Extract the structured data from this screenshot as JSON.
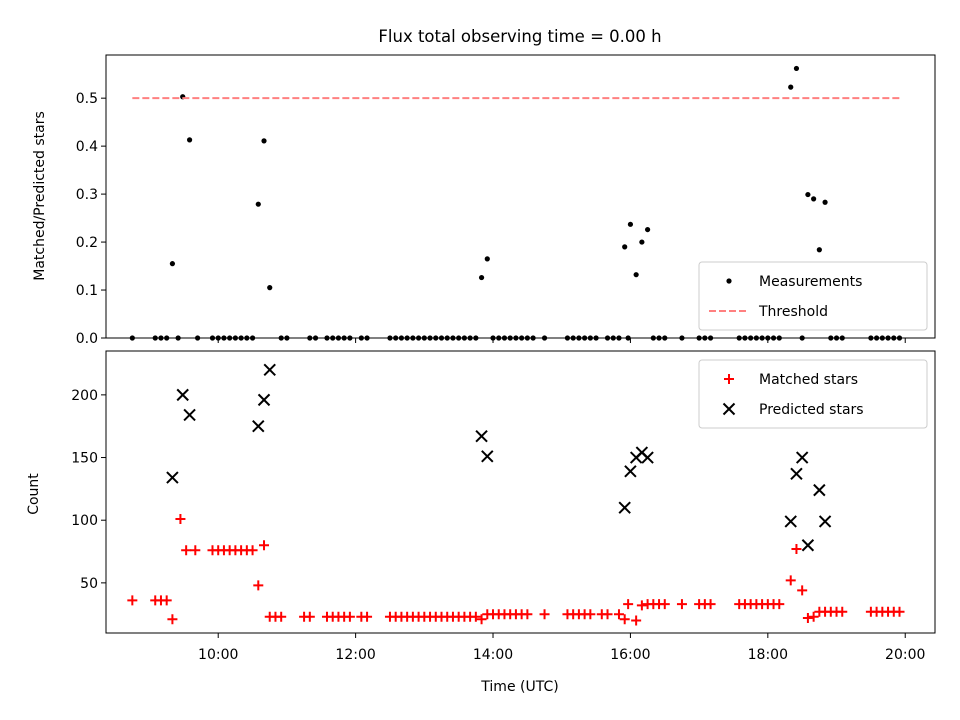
{
  "figure_title": "Flux total observing time = 0.00 h",
  "x_axis": {
    "label": "Time (UTC)",
    "range": [
      "08:22",
      "20:26"
    ],
    "ticks": [
      "10:00",
      "12:00",
      "14:00",
      "16:00",
      "18:00",
      "20:00"
    ]
  },
  "colors": {
    "measurements": "#000000",
    "threshold": "#ff8080",
    "matched": "#ff0000",
    "predicted": "#000000"
  },
  "chart_data": [
    {
      "type": "scatter",
      "panel": "top",
      "ylabel": "Matched/Predicted stars",
      "ylim": [
        0,
        0.59
      ],
      "yticks": [
        "0.0",
        "0.1",
        "0.2",
        "0.3",
        "0.4",
        "0.5"
      ],
      "legend_position": "lower-right",
      "series": [
        {
          "name": "Measurements",
          "marker": "dot",
          "points": [
            [
              "08:45",
              0
            ],
            [
              "09:05",
              0
            ],
            [
              "09:10",
              0
            ],
            [
              "09:15",
              0
            ],
            [
              "09:20",
              0.155
            ],
            [
              "09:25",
              0
            ],
            [
              "09:29",
              0.503
            ],
            [
              "09:35",
              0.413
            ],
            [
              "09:42",
              0
            ],
            [
              "09:55",
              0
            ],
            [
              "10:00",
              0
            ],
            [
              "10:05",
              0
            ],
            [
              "10:10",
              0
            ],
            [
              "10:15",
              0
            ],
            [
              "10:20",
              0
            ],
            [
              "10:25",
              0
            ],
            [
              "10:30",
              0
            ],
            [
              "10:35",
              0.279
            ],
            [
              "10:40",
              0.411
            ],
            [
              "10:45",
              0.105
            ],
            [
              "10:55",
              0
            ],
            [
              "11:00",
              0
            ],
            [
              "11:20",
              0
            ],
            [
              "11:25",
              0
            ],
            [
              "11:35",
              0
            ],
            [
              "11:40",
              0
            ],
            [
              "11:45",
              0
            ],
            [
              "11:50",
              0
            ],
            [
              "11:55",
              0
            ],
            [
              "12:05",
              0
            ],
            [
              "12:10",
              0
            ],
            [
              "12:30",
              0
            ],
            [
              "12:35",
              0
            ],
            [
              "12:40",
              0
            ],
            [
              "12:45",
              0
            ],
            [
              "12:50",
              0
            ],
            [
              "12:55",
              0
            ],
            [
              "13:00",
              0
            ],
            [
              "13:05",
              0
            ],
            [
              "13:10",
              0
            ],
            [
              "13:15",
              0
            ],
            [
              "13:20",
              0
            ],
            [
              "13:25",
              0
            ],
            [
              "13:30",
              0
            ],
            [
              "13:35",
              0
            ],
            [
              "13:40",
              0
            ],
            [
              "13:45",
              0
            ],
            [
              "13:50",
              0.126
            ],
            [
              "13:55",
              0.165
            ],
            [
              "14:00",
              0
            ],
            [
              "14:05",
              0
            ],
            [
              "14:10",
              0
            ],
            [
              "14:15",
              0
            ],
            [
              "14:20",
              0
            ],
            [
              "14:25",
              0
            ],
            [
              "14:30",
              0
            ],
            [
              "14:35",
              0
            ],
            [
              "14:45",
              0
            ],
            [
              "15:05",
              0
            ],
            [
              "15:10",
              0
            ],
            [
              "15:15",
              0
            ],
            [
              "15:20",
              0
            ],
            [
              "15:25",
              0
            ],
            [
              "15:30",
              0
            ],
            [
              "15:40",
              0
            ],
            [
              "15:45",
              0
            ],
            [
              "15:50",
              0
            ],
            [
              "15:55",
              0.19
            ],
            [
              "15:58",
              0
            ],
            [
              "16:00",
              0.237
            ],
            [
              "16:05",
              0.132
            ],
            [
              "16:10",
              0.2
            ],
            [
              "16:15",
              0.226
            ],
            [
              "16:20",
              0
            ],
            [
              "16:25",
              0
            ],
            [
              "16:30",
              0
            ],
            [
              "16:45",
              0
            ],
            [
              "17:00",
              0
            ],
            [
              "17:05",
              0
            ],
            [
              "17:10",
              0
            ],
            [
              "17:35",
              0
            ],
            [
              "17:40",
              0
            ],
            [
              "17:45",
              0
            ],
            [
              "17:50",
              0
            ],
            [
              "17:55",
              0
            ],
            [
              "18:00",
              0
            ],
            [
              "18:05",
              0
            ],
            [
              "18:10",
              0
            ],
            [
              "18:20",
              0.523
            ],
            [
              "18:25",
              0.562
            ],
            [
              "18:30",
              0
            ],
            [
              "18:35",
              0.299
            ],
            [
              "18:40",
              0.29
            ],
            [
              "18:45",
              0.184
            ],
            [
              "18:50",
              0.283
            ],
            [
              "18:55",
              0
            ],
            [
              "19:00",
              0
            ],
            [
              "19:05",
              0
            ],
            [
              "19:30",
              0
            ],
            [
              "19:35",
              0
            ],
            [
              "19:40",
              0
            ],
            [
              "19:45",
              0
            ],
            [
              "19:50",
              0
            ],
            [
              "19:55",
              0
            ]
          ]
        },
        {
          "name": "Threshold",
          "marker": "dashed-line",
          "points": [
            [
              "08:45",
              0.5
            ],
            [
              "19:55",
              0.5
            ]
          ]
        }
      ]
    },
    {
      "type": "scatter",
      "panel": "bottom",
      "ylabel": "Count",
      "ylim": [
        10,
        235
      ],
      "yticks": [
        "50",
        "100",
        "150",
        "200"
      ],
      "legend_position": "upper-right",
      "series": [
        {
          "name": "Matched stars",
          "marker": "plus",
          "points": [
            [
              "08:45",
              36
            ],
            [
              "09:05",
              36
            ],
            [
              "09:10",
              36
            ],
            [
              "09:15",
              36
            ],
            [
              "09:20",
              21
            ],
            [
              "09:27",
              101
            ],
            [
              "09:32",
              76
            ],
            [
              "09:40",
              76
            ],
            [
              "09:55",
              76
            ],
            [
              "10:00",
              76
            ],
            [
              "10:05",
              76
            ],
            [
              "10:10",
              76
            ],
            [
              "10:15",
              76
            ],
            [
              "10:20",
              76
            ],
            [
              "10:25",
              76
            ],
            [
              "10:30",
              76
            ],
            [
              "10:35",
              48
            ],
            [
              "10:40",
              80
            ],
            [
              "10:45",
              23
            ],
            [
              "10:50",
              23
            ],
            [
              "10:55",
              23
            ],
            [
              "11:15",
              23
            ],
            [
              "11:20",
              23
            ],
            [
              "11:35",
              23
            ],
            [
              "11:40",
              23
            ],
            [
              "11:45",
              23
            ],
            [
              "11:50",
              23
            ],
            [
              "11:55",
              23
            ],
            [
              "12:05",
              23
            ],
            [
              "12:10",
              23
            ],
            [
              "12:30",
              23
            ],
            [
              "12:35",
              23
            ],
            [
              "12:40",
              23
            ],
            [
              "12:45",
              23
            ],
            [
              "12:50",
              23
            ],
            [
              "12:55",
              23
            ],
            [
              "13:00",
              23
            ],
            [
              "13:05",
              23
            ],
            [
              "13:10",
              23
            ],
            [
              "13:15",
              23
            ],
            [
              "13:20",
              23
            ],
            [
              "13:25",
              23
            ],
            [
              "13:30",
              23
            ],
            [
              "13:35",
              23
            ],
            [
              "13:40",
              23
            ],
            [
              "13:45",
              23
            ],
            [
              "13:50",
              21
            ],
            [
              "13:55",
              25
            ],
            [
              "14:00",
              25
            ],
            [
              "14:05",
              25
            ],
            [
              "14:10",
              25
            ],
            [
              "14:15",
              25
            ],
            [
              "14:20",
              25
            ],
            [
              "14:25",
              25
            ],
            [
              "14:30",
              25
            ],
            [
              "14:45",
              25
            ],
            [
              "15:05",
              25
            ],
            [
              "15:10",
              25
            ],
            [
              "15:15",
              25
            ],
            [
              "15:20",
              25
            ],
            [
              "15:25",
              25
            ],
            [
              "15:35",
              25
            ],
            [
              "15:40",
              25
            ],
            [
              "15:50",
              25
            ],
            [
              "15:55",
              21
            ],
            [
              "15:58",
              33
            ],
            [
              "16:05",
              20
            ],
            [
              "16:10",
              32
            ],
            [
              "16:15",
              33
            ],
            [
              "16:20",
              33
            ],
            [
              "16:25",
              33
            ],
            [
              "16:30",
              33
            ],
            [
              "16:45",
              33
            ],
            [
              "17:00",
              33
            ],
            [
              "17:05",
              33
            ],
            [
              "17:10",
              33
            ],
            [
              "17:35",
              33
            ],
            [
              "17:40",
              33
            ],
            [
              "17:45",
              33
            ],
            [
              "17:50",
              33
            ],
            [
              "17:55",
              33
            ],
            [
              "18:00",
              33
            ],
            [
              "18:05",
              33
            ],
            [
              "18:10",
              33
            ],
            [
              "18:20",
              52
            ],
            [
              "18:25",
              77
            ],
            [
              "18:30",
              44
            ],
            [
              "18:35",
              22
            ],
            [
              "18:40",
              23
            ],
            [
              "18:45",
              27
            ],
            [
              "18:50",
              27
            ],
            [
              "18:55",
              27
            ],
            [
              "19:00",
              27
            ],
            [
              "19:05",
              27
            ],
            [
              "19:30",
              27
            ],
            [
              "19:35",
              27
            ],
            [
              "19:40",
              27
            ],
            [
              "19:45",
              27
            ],
            [
              "19:50",
              27
            ],
            [
              "19:55",
              27
            ]
          ]
        },
        {
          "name": "Predicted stars",
          "marker": "x",
          "points": [
            [
              "09:20",
              134
            ],
            [
              "09:29",
              200
            ],
            [
              "09:35",
              184
            ],
            [
              "10:35",
              175
            ],
            [
              "10:40",
              196
            ],
            [
              "10:45",
              220
            ],
            [
              "13:50",
              167
            ],
            [
              "13:55",
              151
            ],
            [
              "15:55",
              110
            ],
            [
              "16:00",
              139
            ],
            [
              "16:05",
              150
            ],
            [
              "16:10",
              154
            ],
            [
              "16:15",
              150
            ],
            [
              "18:20",
              99
            ],
            [
              "18:25",
              137
            ],
            [
              "18:30",
              150
            ],
            [
              "18:35",
              80
            ],
            [
              "18:45",
              124
            ],
            [
              "18:50",
              99
            ]
          ]
        }
      ]
    }
  ]
}
